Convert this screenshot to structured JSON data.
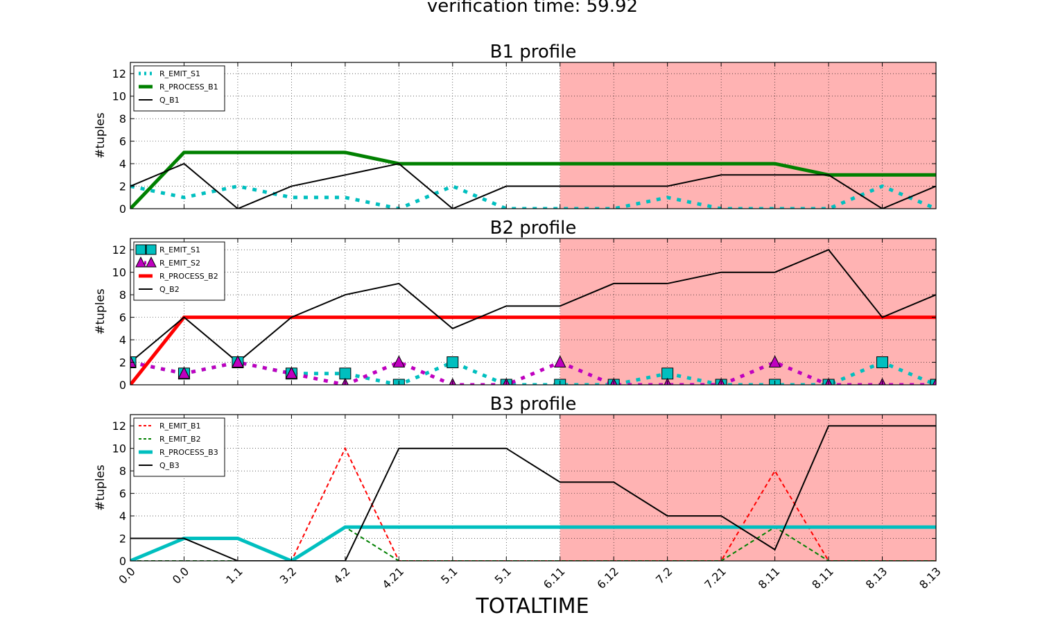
{
  "figure": {
    "title": "verification time: 59.92",
    "xlabel": "TOTALTIME"
  },
  "colors": {
    "highlight": "#ff9999",
    "cyan": "#00bfbf",
    "green": "#008000",
    "red": "#ff0000",
    "magenta": "#bf00bf",
    "black": "#000000"
  },
  "chart_data": [
    {
      "type": "line",
      "title": "B1 profile",
      "ylabel": "#tuples",
      "ylim": [
        0,
        13
      ],
      "yticks": [
        0,
        2,
        4,
        6,
        8,
        10,
        12
      ],
      "x": [
        "0.0",
        "0.0",
        "1.1",
        "3.2",
        "4.2",
        "4.21",
        "5.1",
        "5.1",
        "6.11",
        "6.12",
        "7.2",
        "7.21",
        "8.11",
        "8.11",
        "8.13",
        "8.13"
      ],
      "highlight_from_index": 8,
      "grid": true,
      "legend": "upper-left",
      "series": [
        {
          "name": "R_EMIT_S1",
          "color": "#00bfbf",
          "style": "dotted",
          "width": 5,
          "values": [
            2,
            1,
            2,
            1,
            1,
            0,
            2,
            0,
            0,
            0,
            1,
            0,
            0,
            0,
            2,
            0
          ]
        },
        {
          "name": "R_PROCESS_B1",
          "color": "#008000",
          "style": "solid",
          "width": 5,
          "values": [
            0,
            5,
            5,
            5,
            5,
            4,
            4,
            4,
            4,
            4,
            4,
            4,
            4,
            3,
            3,
            3
          ]
        },
        {
          "name": "Q_B1",
          "color": "#000000",
          "style": "solid",
          "width": 2,
          "values": [
            2,
            4,
            0,
            2,
            3,
            4,
            0,
            2,
            2,
            2,
            2,
            3,
            3,
            3,
            0,
            2
          ]
        }
      ]
    },
    {
      "type": "line",
      "title": "B2 profile",
      "ylabel": "#tuples",
      "ylim": [
        0,
        13
      ],
      "yticks": [
        0,
        2,
        4,
        6,
        8,
        10,
        12
      ],
      "x": [
        "0.0",
        "0.0",
        "1.1",
        "3.2",
        "4.2",
        "4.21",
        "5.1",
        "5.1",
        "6.11",
        "6.12",
        "7.2",
        "7.21",
        "8.11",
        "8.11",
        "8.13",
        "8.13"
      ],
      "highlight_from_index": 8,
      "grid": true,
      "legend": "upper-left",
      "series": [
        {
          "name": "R_EMIT_S1",
          "color": "#00bfbf",
          "style": "dotted",
          "width": 5,
          "marker": "square",
          "values": [
            2,
            1,
            2,
            1,
            1,
            0,
            2,
            0,
            0,
            0,
            1,
            0,
            0,
            0,
            2,
            0
          ]
        },
        {
          "name": "R_EMIT_S2",
          "color": "#bf00bf",
          "style": "dotted",
          "width": 5,
          "marker": "triangle",
          "values": [
            2,
            1,
            2,
            1,
            0,
            2,
            0,
            0,
            2,
            0,
            0,
            0,
            2,
            0,
            0,
            0
          ]
        },
        {
          "name": "R_PROCESS_B2",
          "color": "#ff0000",
          "style": "solid",
          "width": 5,
          "values": [
            0,
            6,
            6,
            6,
            6,
            6,
            6,
            6,
            6,
            6,
            6,
            6,
            6,
            6,
            6,
            6
          ]
        },
        {
          "name": "Q_B2",
          "color": "#000000",
          "style": "solid",
          "width": 2,
          "values": [
            2,
            6,
            2,
            6,
            8,
            9,
            5,
            7,
            7,
            9,
            9,
            10,
            10,
            12,
            6,
            8
          ]
        }
      ]
    },
    {
      "type": "line",
      "title": "B3 profile",
      "ylabel": "#tuples",
      "ylim": [
        0,
        13
      ],
      "yticks": [
        0,
        2,
        4,
        6,
        8,
        10,
        12
      ],
      "x": [
        "0.0",
        "0.0",
        "1.1",
        "3.2",
        "4.2",
        "4.21",
        "5.1",
        "5.1",
        "6.11",
        "6.12",
        "7.2",
        "7.21",
        "8.11",
        "8.11",
        "8.13",
        "8.13"
      ],
      "highlight_from_index": 8,
      "grid": true,
      "legend": "upper-left",
      "series": [
        {
          "name": "R_EMIT_B1",
          "color": "#ff0000",
          "style": "dashed",
          "width": 2,
          "values": [
            0,
            0,
            0,
            0,
            10,
            0,
            0,
            0,
            0,
            0,
            0,
            0,
            8,
            0,
            0,
            0
          ]
        },
        {
          "name": "R_EMIT_B2",
          "color": "#008000",
          "style": "dashed",
          "width": 2,
          "values": [
            0,
            0,
            0,
            0,
            3,
            0,
            0,
            0,
            0,
            0,
            0,
            0,
            3,
            0,
            0,
            0
          ]
        },
        {
          "name": "R_PROCESS_B3",
          "color": "#00bfbf",
          "style": "solid",
          "width": 5,
          "values": [
            0,
            2,
            2,
            0,
            3,
            3,
            3,
            3,
            3,
            3,
            3,
            3,
            3,
            3,
            3,
            3
          ]
        },
        {
          "name": "Q_B3",
          "color": "#000000",
          "style": "solid",
          "width": 2,
          "values": [
            2,
            2,
            0,
            0,
            0,
            10,
            10,
            10,
            7,
            7,
            4,
            4,
            1,
            12,
            12,
            12
          ]
        }
      ]
    }
  ]
}
